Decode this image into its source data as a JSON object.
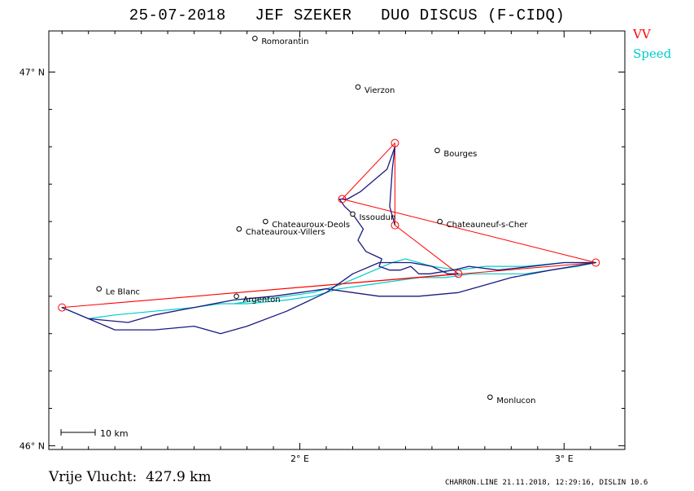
{
  "title": "25-07-2018   JEF SZEKER   DUO DISCUS (F-CIDQ)",
  "legend": {
    "vv_label": "VV",
    "speed_label": "Speed"
  },
  "colors": {
    "vv": "#ff0000",
    "speed": "#00cccc",
    "track": "#1a1a80"
  },
  "axes": {
    "lat_ticks": [
      {
        "value": 47,
        "label": "47° N"
      },
      {
        "value": 46,
        "label": "46° N"
      }
    ],
    "lon_ticks": [
      {
        "value": 2,
        "label": "2° E"
      },
      {
        "value": 3,
        "label": "3° E"
      }
    ]
  },
  "scale_bar": {
    "label": "10 km"
  },
  "cities": [
    {
      "name": "Romorantin",
      "lon": 1.83,
      "lat": 47.09
    },
    {
      "name": "Vierzon",
      "lon": 2.22,
      "lat": 46.96
    },
    {
      "name": "Bourges",
      "lon": 2.52,
      "lat": 46.79
    },
    {
      "name": "Issoudun",
      "lon": 2.2,
      "lat": 46.62
    },
    {
      "name": "Chateauroux-Deols",
      "lon": 1.87,
      "lat": 46.6
    },
    {
      "name": "Chateauneuf-s-Cher",
      "lon": 2.53,
      "lat": 46.6
    },
    {
      "name": "Chateauroux-Villers",
      "lon": 1.77,
      "lat": 46.58
    },
    {
      "name": "Le Blanc",
      "lon": 1.24,
      "lat": 46.42
    },
    {
      "name": "Argenton",
      "lon": 1.76,
      "lat": 46.4
    },
    {
      "name": "Monlucon",
      "lon": 2.72,
      "lat": 46.13
    }
  ],
  "footer": {
    "distance_label": "Vrije Vlucht:",
    "distance_value": "427.9 km",
    "credit": "CHARRON.LINE 21.11.2018, 12:29:16, DISLIN 10.6"
  },
  "chart_data": {
    "type": "map",
    "xlabel": "",
    "ylabel": "",
    "x_range_deg_e": [
      1.05,
      3.23
    ],
    "y_range_deg_n": [
      45.99,
      47.11
    ],
    "turnpoints": [
      {
        "lon": 2.36,
        "lat": 46.81
      },
      {
        "lon": 2.16,
        "lat": 46.66
      },
      {
        "lon": 2.36,
        "lat": 46.59
      },
      {
        "lon": 3.12,
        "lat": 46.49
      },
      {
        "lon": 2.6,
        "lat": 46.46
      },
      {
        "lon": 1.1,
        "lat": 46.37
      }
    ],
    "task_sequence": [
      [
        2.6,
        46.46
      ],
      [
        2.36,
        46.59
      ],
      [
        2.36,
        46.81
      ],
      [
        2.16,
        46.66
      ],
      [
        3.12,
        46.49
      ],
      [
        1.1,
        46.37
      ],
      [
        2.6,
        46.46
      ]
    ],
    "track": [
      [
        2.36,
        46.59
      ],
      [
        2.34,
        46.64
      ],
      [
        2.35,
        46.74
      ],
      [
        2.36,
        46.8
      ],
      [
        2.33,
        46.74
      ],
      [
        2.23,
        46.68
      ],
      [
        2.18,
        46.66
      ],
      [
        2.15,
        46.66
      ],
      [
        2.17,
        46.64
      ],
      [
        2.2,
        46.62
      ],
      [
        2.22,
        46.6
      ],
      [
        2.24,
        46.58
      ],
      [
        2.22,
        46.55
      ],
      [
        2.25,
        46.52
      ],
      [
        2.28,
        46.51
      ],
      [
        2.31,
        46.5
      ],
      [
        2.3,
        46.48
      ],
      [
        2.34,
        46.47
      ],
      [
        2.38,
        46.47
      ],
      [
        2.42,
        46.48
      ],
      [
        2.45,
        46.46
      ],
      [
        2.49,
        46.46
      ],
      [
        2.58,
        46.47
      ],
      [
        2.64,
        46.48
      ],
      [
        2.75,
        46.47
      ],
      [
        2.88,
        46.48
      ],
      [
        3.0,
        46.49
      ],
      [
        3.12,
        46.49
      ],
      [
        2.95,
        46.47
      ],
      [
        2.8,
        46.45
      ],
      [
        2.7,
        46.43
      ],
      [
        2.6,
        46.41
      ],
      [
        2.45,
        46.4
      ],
      [
        2.3,
        46.4
      ],
      [
        2.2,
        46.41
      ],
      [
        2.1,
        46.42
      ],
      [
        2.0,
        46.41
      ],
      [
        1.9,
        46.4
      ],
      [
        1.75,
        46.39
      ],
      [
        1.6,
        46.37
      ],
      [
        1.45,
        46.35
      ],
      [
        1.35,
        46.33
      ],
      [
        1.2,
        46.34
      ],
      [
        1.1,
        46.37
      ],
      [
        1.2,
        46.34
      ],
      [
        1.3,
        46.31
      ],
      [
        1.45,
        46.31
      ],
      [
        1.6,
        46.32
      ],
      [
        1.7,
        46.3
      ],
      [
        1.8,
        46.32
      ],
      [
        1.95,
        46.36
      ],
      [
        2.1,
        46.41
      ],
      [
        2.2,
        46.46
      ],
      [
        2.3,
        46.49
      ],
      [
        2.42,
        46.49
      ],
      [
        2.5,
        46.48
      ],
      [
        2.56,
        46.46
      ],
      [
        2.6,
        46.46
      ]
    ],
    "speed_trace": [
      [
        1.1,
        46.37
      ],
      [
        1.2,
        46.34
      ],
      [
        1.3,
        46.35
      ],
      [
        1.45,
        46.36
      ],
      [
        1.6,
        46.37
      ],
      [
        1.7,
        46.38
      ],
      [
        1.8,
        46.38
      ],
      [
        1.95,
        46.39
      ],
      [
        2.05,
        46.4
      ],
      [
        2.15,
        46.42
      ],
      [
        2.25,
        46.43
      ],
      [
        2.35,
        46.44
      ],
      [
        2.45,
        46.45
      ],
      [
        2.55,
        46.45
      ],
      [
        2.65,
        46.46
      ],
      [
        2.75,
        46.46
      ],
      [
        2.85,
        46.46
      ],
      [
        2.95,
        46.47
      ],
      [
        3.05,
        46.48
      ],
      [
        3.12,
        46.49
      ],
      [
        3.0,
        46.49
      ],
      [
        2.85,
        46.48
      ],
      [
        2.7,
        46.48
      ],
      [
        2.6,
        46.47
      ],
      [
        2.5,
        46.48
      ],
      [
        2.45,
        46.49
      ],
      [
        2.4,
        46.5
      ],
      [
        2.35,
        46.49
      ],
      [
        2.25,
        46.46
      ],
      [
        2.15,
        46.43
      ],
      [
        2.05,
        46.41
      ],
      [
        1.95,
        46.4
      ],
      [
        1.85,
        46.39
      ],
      [
        1.75,
        46.38
      ]
    ]
  }
}
